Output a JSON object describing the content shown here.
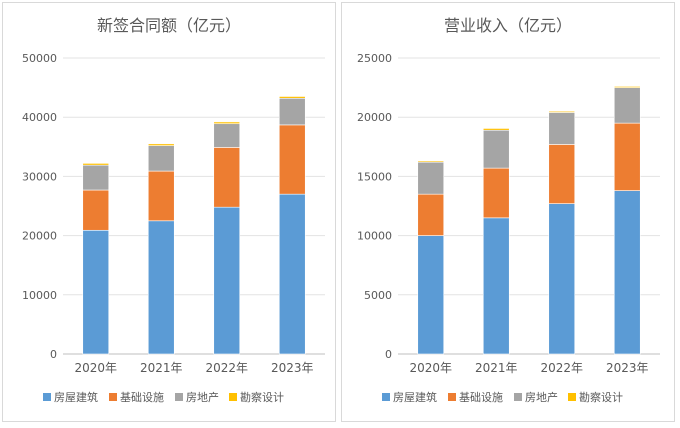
{
  "chart_data": [
    {
      "type": "bar",
      "stacked": true,
      "title": "新签合同额（亿元）",
      "categories": [
        "2020年",
        "2021年",
        "2022年",
        "2023年"
      ],
      "series": [
        {
          "name": "房屋建筑",
          "color": "#5b9bd5",
          "values": [
            20900,
            22500,
            24800,
            27000
          ]
        },
        {
          "name": "基础设施",
          "color": "#ed7d31",
          "values": [
            6800,
            8400,
            10100,
            11700
          ]
        },
        {
          "name": "房地产",
          "color": "#a5a5a5",
          "values": [
            4200,
            4300,
            4000,
            4500
          ]
        },
        {
          "name": "勘察设计",
          "color": "#ffc000",
          "values": [
            300,
            300,
            300,
            300
          ]
        }
      ],
      "ylim": [
        0,
        50000
      ],
      "yticks": [
        "0",
        "10000",
        "20000",
        "30000",
        "40000",
        "50000"
      ],
      "grid": true,
      "legend": "bottom"
    },
    {
      "type": "bar",
      "stacked": true,
      "title": "营业收入（亿元）",
      "categories": [
        "2020年",
        "2021年",
        "2022年",
        "2023年"
      ],
      "series": [
        {
          "name": "房屋建筑",
          "color": "#5b9bd5",
          "values": [
            10000,
            11500,
            12700,
            13800
          ]
        },
        {
          "name": "基础设施",
          "color": "#ed7d31",
          "values": [
            3500,
            4200,
            5000,
            5700
          ]
        },
        {
          "name": "房地产",
          "color": "#a5a5a5",
          "values": [
            2700,
            3200,
            2700,
            3000
          ]
        },
        {
          "name": "勘察设计",
          "color": "#ffc000",
          "values": [
            100,
            150,
            100,
            100
          ]
        }
      ],
      "ylim": [
        0,
        25000
      ],
      "yticks": [
        "0",
        "5000",
        "10000",
        "15000",
        "20000",
        "25000"
      ],
      "grid": true,
      "legend": "bottom"
    }
  ]
}
